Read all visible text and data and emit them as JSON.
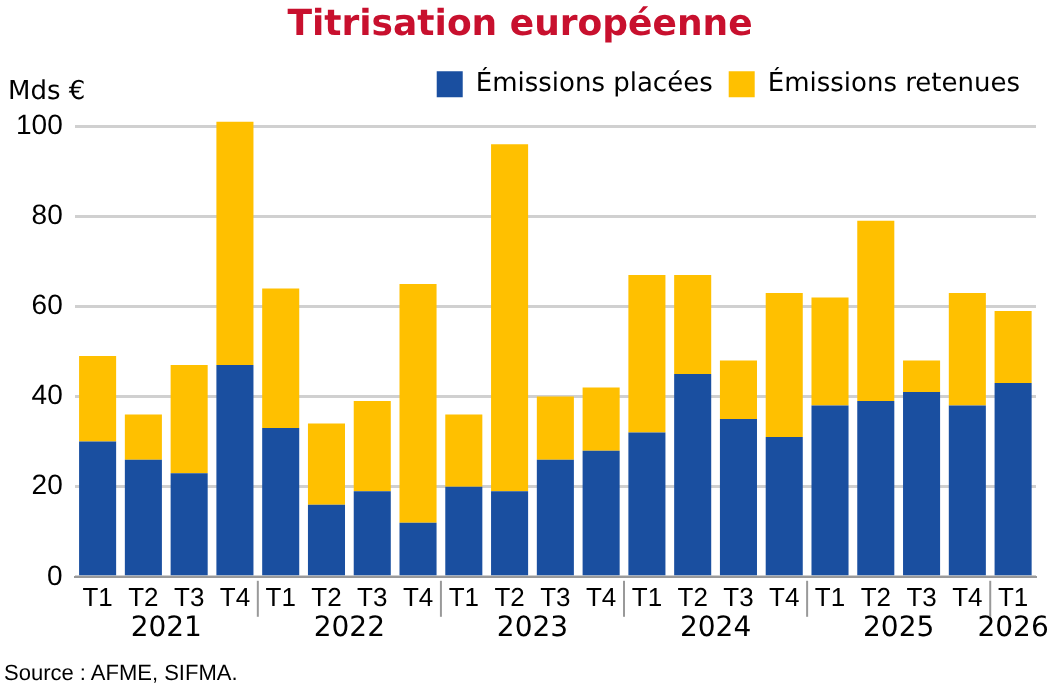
{
  "chart_data": {
    "type": "bar",
    "title": "Titrisation européenne",
    "ylabel": "Mds €",
    "stacked": true,
    "categories": [
      "T1",
      "T2",
      "T3",
      "T4",
      "T1",
      "T2",
      "T3",
      "T4",
      "T1",
      "T2",
      "T3",
      "T4",
      "T1",
      "T2",
      "T3",
      "T4",
      "T1",
      "T2",
      "T3",
      "T4",
      "T1"
    ],
    "series": [
      {
        "name": "Émissions placées",
        "color": "#1a4fa0",
        "values": [
          30,
          26,
          23,
          47,
          33,
          16,
          19,
          12,
          20,
          19,
          26,
          28,
          32,
          45,
          35,
          31,
          38,
          39,
          41,
          38,
          43
        ]
      },
      {
        "name": "Émissions retenues",
        "color": "#ffc000",
        "values": [
          19,
          10,
          24,
          54,
          31,
          18,
          20,
          53,
          16,
          77,
          14,
          14,
          35,
          22,
          13,
          32,
          24,
          40,
          7,
          25,
          16
        ]
      }
    ],
    "ylim": [
      0,
      102
    ],
    "yticks": [
      0,
      20,
      40,
      60,
      80,
      100
    ],
    "grid": "y",
    "legend": "top",
    "annotations": [
      "2021",
      "2022",
      "2023",
      "2024",
      "2025",
      "2026",
      "Source : AFME, SIFMA."
    ]
  }
}
